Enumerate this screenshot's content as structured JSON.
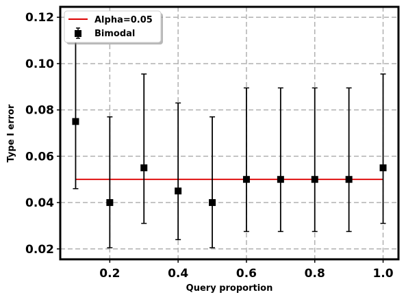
{
  "chart_data": {
    "type": "scatter",
    "xlabel": "Query proportion",
    "ylabel": "Type I error",
    "xlim": [
      0.055,
      1.045
    ],
    "ylim": [
      0.0155,
      0.1245
    ],
    "xticks": [
      0.2,
      0.4,
      0.6,
      0.8,
      1.0
    ],
    "xtick_labels": [
      "0.2",
      "0.4",
      "0.6",
      "0.8",
      "1.0"
    ],
    "yticks": [
      0.02,
      0.04,
      0.06,
      0.08,
      0.1,
      0.12
    ],
    "ytick_labels": [
      "0.02",
      "0.04",
      "0.06",
      "0.08",
      "0.10",
      "0.12"
    ],
    "grid": true,
    "legend_position": "top-left",
    "series": [
      {
        "name": "Bimodal",
        "kind": "errorbar",
        "color": "#000000",
        "marker": "square",
        "x": [
          0.1,
          0.2,
          0.3,
          0.4,
          0.5,
          0.6,
          0.7,
          0.8,
          0.9,
          1.0
        ],
        "y": [
          0.075,
          0.04,
          0.055,
          0.045,
          0.04,
          0.05,
          0.05,
          0.05,
          0.05,
          0.055
        ],
        "lower": [
          0.046,
          0.0205,
          0.031,
          0.024,
          0.0205,
          0.0275,
          0.0275,
          0.0275,
          0.0275,
          0.031
        ],
        "upper": [
          0.114,
          0.077,
          0.0955,
          0.083,
          0.077,
          0.0895,
          0.0895,
          0.0895,
          0.0895,
          0.0955
        ]
      },
      {
        "name": "Alpha=0.05",
        "kind": "line",
        "color": "#dd0000",
        "x": [
          0.1,
          1.0
        ],
        "y": [
          0.05,
          0.05
        ]
      }
    ]
  }
}
